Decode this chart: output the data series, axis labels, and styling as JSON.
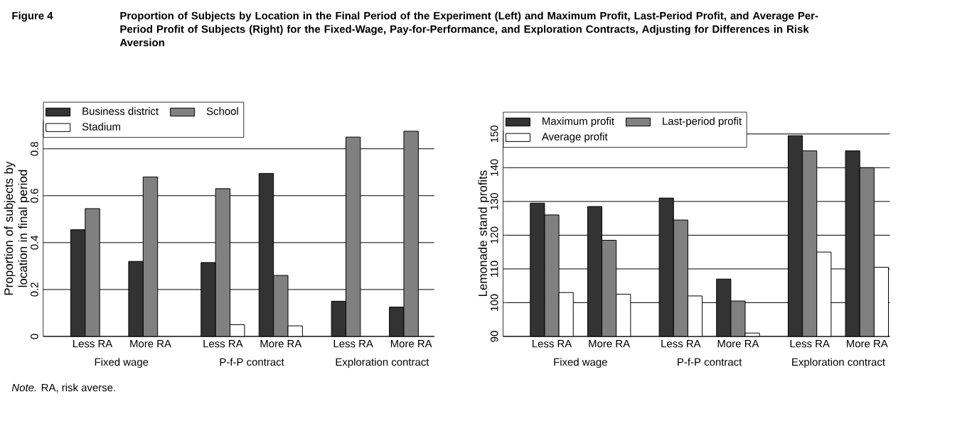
{
  "chart_data": [
    {
      "type": "bar",
      "title": "Figure 4",
      "subtitle": "Proportion of Subjects by Location in the Final Period of the Experiment (Left) and Maximum Profit, Last-Period Profit, and Average Per-Period Profit of Subjects (Right) for the Fixed-Wage, Pay-for-Performance, and Exploration Contracts, Adjusting for Differences in Risk Aversion",
      "ylabel": "Proportion of subjects by location in final period",
      "categories": [
        "Less RA",
        "More RA",
        "Less RA",
        "More RA",
        "Less RA",
        "More RA"
      ],
      "series": [
        {
          "name": "Business district",
          "color": "#333333",
          "values": [
            0.455,
            0.32,
            0.315,
            0.695,
            0.15,
            0.125
          ]
        },
        {
          "name": "School",
          "color": "#808080",
          "values": [
            0.545,
            0.68,
            0.63,
            0.26,
            0.85,
            0.875
          ]
        },
        {
          "name": "Stadium",
          "color": "#ffffff",
          "values": [
            null,
            null,
            0.05,
            0.045,
            null,
            null
          ]
        }
      ],
      "ylim": [
        0,
        0.92
      ],
      "yticks": [
        0,
        0.2,
        0.4,
        0.6,
        0.8
      ],
      "grid": "y",
      "legend": "top left",
      "annotations": [
        "Fixed wage",
        "P-f-P contract",
        "Exploration contract",
        "*Note.* RA, risk averse."
      ]
    },
    {
      "type": "bar",
      "ylabel": "Lemonade stand profits",
      "categories": [
        "Less RA",
        "More RA",
        "Less RA",
        "More RA",
        "Less RA",
        "More RA"
      ],
      "series": [
        {
          "name": "Maximum profit",
          "color": "#333333",
          "values": [
            129.5,
            128.5,
            131,
            107,
            149.5,
            145
          ]
        },
        {
          "name": "Last-period profit",
          "color": "#808080",
          "values": [
            126,
            118.5,
            124.5,
            100.5,
            145,
            140
          ]
        },
        {
          "name": "Average profit",
          "color": "#ffffff",
          "values": [
            103,
            102.5,
            102,
            91,
            115,
            110.5
          ]
        }
      ],
      "ylim": [
        90,
        151
      ],
      "yticks": [
        90,
        100,
        110,
        120,
        130,
        140,
        150
      ],
      "grid": "y",
      "legend": "top left",
      "annotations": [
        "Fixed wage",
        "P-f-P contract",
        "Exploration contract"
      ]
    }
  ]
}
